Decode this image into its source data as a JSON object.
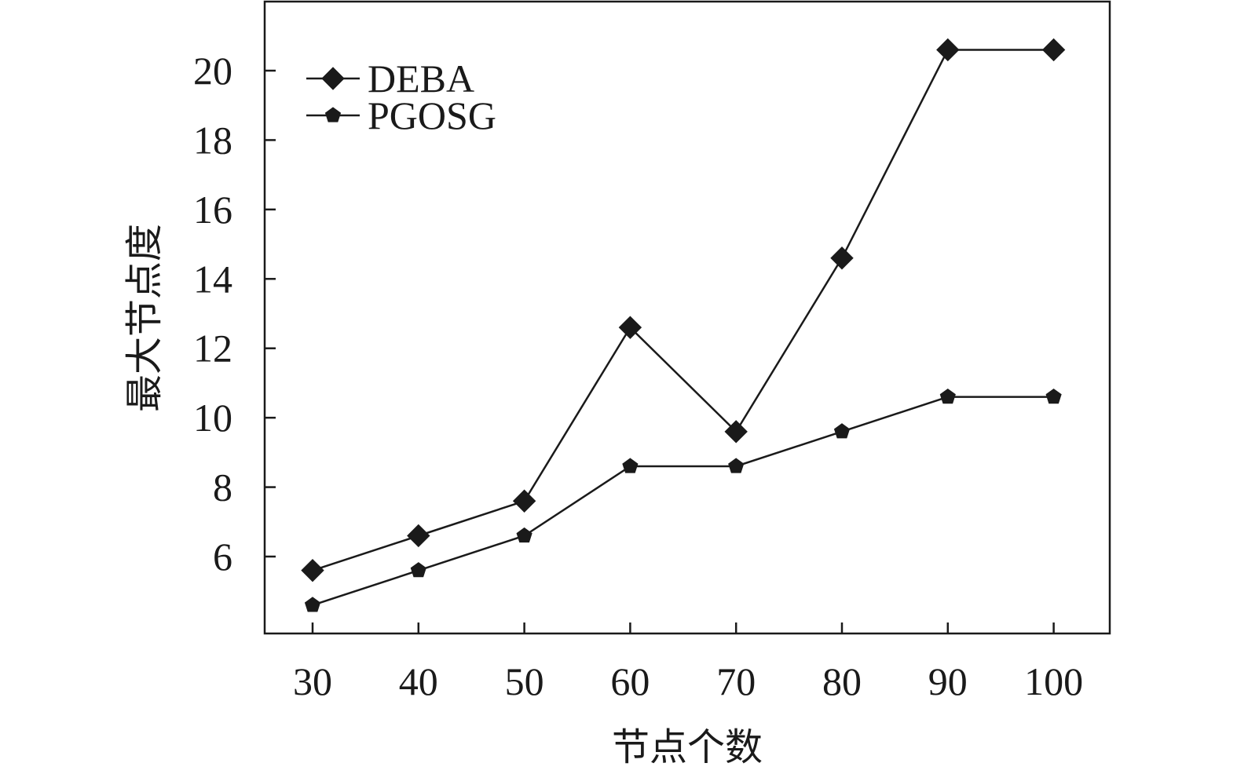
{
  "chart_data": {
    "type": "line",
    "title": "",
    "xlabel": "节点个数",
    "ylabel": "最大节点度",
    "x": [
      30,
      40,
      50,
      60,
      70,
      80,
      90,
      100
    ],
    "xticks": [
      "30",
      "40",
      "50",
      "60",
      "70",
      "80",
      "90",
      "100"
    ],
    "yticks": [
      "6",
      "8",
      "10",
      "12",
      "14",
      "16",
      "18",
      "20"
    ],
    "ylim": [
      3.8,
      21.8
    ],
    "grid": false,
    "legend_position": "top-left",
    "series": [
      {
        "name": "DEBA",
        "marker": "diamond",
        "values": [
          5.6,
          6.6,
          7.6,
          12.6,
          9.6,
          14.6,
          20.6,
          20.6
        ]
      },
      {
        "name": "PGOSG",
        "marker": "pentagon",
        "values": [
          4.6,
          5.6,
          6.6,
          8.6,
          8.6,
          9.6,
          10.6,
          10.6
        ]
      }
    ],
    "colors": {
      "line": "#1a1a1a",
      "axis": "#1a1a1a",
      "background": "#ffffff"
    }
  }
}
